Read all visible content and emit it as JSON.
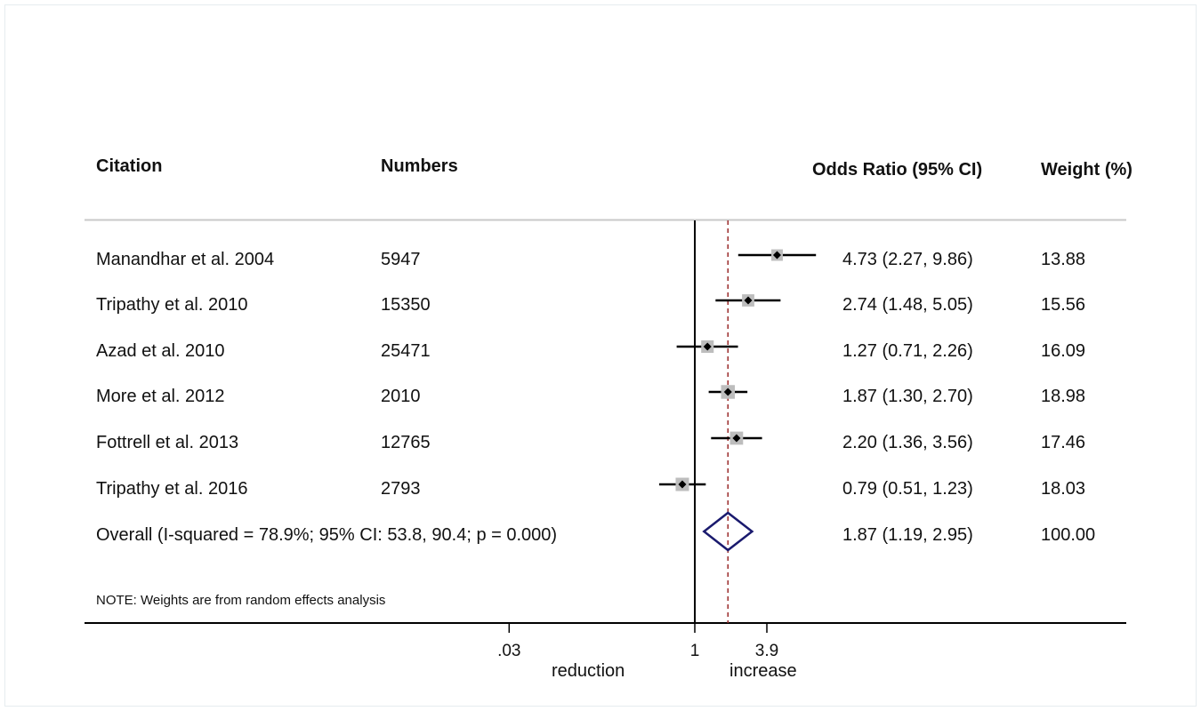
{
  "chart_data": {
    "type": "forest",
    "headers": {
      "citation": "Citation",
      "numbers": "Numbers",
      "or": "Odds Ratio (95% CI)",
      "weight": "Weight (%)"
    },
    "studies": [
      {
        "citation": "Manandhar et al. 2004",
        "numbers": "5947",
        "or": 4.73,
        "lo": 2.27,
        "hi": 9.86,
        "or_text": "4.73 (2.27, 9.86)",
        "weight": "13.88",
        "w": 13.88
      },
      {
        "citation": "Tripathy et al. 2010",
        "numbers": "15350",
        "or": 2.74,
        "lo": 1.48,
        "hi": 5.05,
        "or_text": "2.74 (1.48, 5.05)",
        "weight": "15.56",
        "w": 15.56
      },
      {
        "citation": "Azad et al. 2010",
        "numbers": "25471",
        "or": 1.27,
        "lo": 0.71,
        "hi": 2.26,
        "or_text": "1.27 (0.71, 2.26)",
        "weight": "16.09",
        "w": 16.09
      },
      {
        "citation": "More et al. 2012",
        "numbers": "2010",
        "or": 1.87,
        "lo": 1.3,
        "hi": 2.7,
        "or_text": "1.87 (1.30, 2.70)",
        "weight": "18.98",
        "w": 18.98
      },
      {
        "citation": "Fottrell et al. 2013",
        "numbers": "12765",
        "or": 2.2,
        "lo": 1.36,
        "hi": 3.56,
        "or_text": "2.20 (1.36, 3.56)",
        "weight": "17.46",
        "w": 17.46
      },
      {
        "citation": "Tripathy et al. 2016",
        "numbers": "2793",
        "or": 0.79,
        "lo": 0.51,
        "hi": 1.23,
        "or_text": "0.79 (0.51, 1.23)",
        "weight": "18.03",
        "w": 18.03
      }
    ],
    "overall": {
      "label": "Overall  (I-squared = 78.9%; 95% CI: 53.8, 90.4; p = 0.000)",
      "or": 1.87,
      "lo": 1.19,
      "hi": 2.95,
      "or_text": "1.87 (1.19, 2.95)",
      "weight": "100.00"
    },
    "note": "NOTE: Weights are from random effects analysis",
    "x_scale": "log",
    "null_value": 1,
    "x_ticks": [
      {
        "value": 0.03,
        "label": ".03"
      },
      {
        "value": 1,
        "label": "1"
      },
      {
        "value": 3.9,
        "label": "3.9"
      }
    ],
    "x_labels": {
      "left": "reduction",
      "right": "increase"
    },
    "colors": {
      "diamond": "#1a1a6e",
      "dashed_line": "#9b2c2c",
      "weight_box": "#bdbdbd",
      "lines": "#000000",
      "separator": "#c8c8c8"
    }
  }
}
